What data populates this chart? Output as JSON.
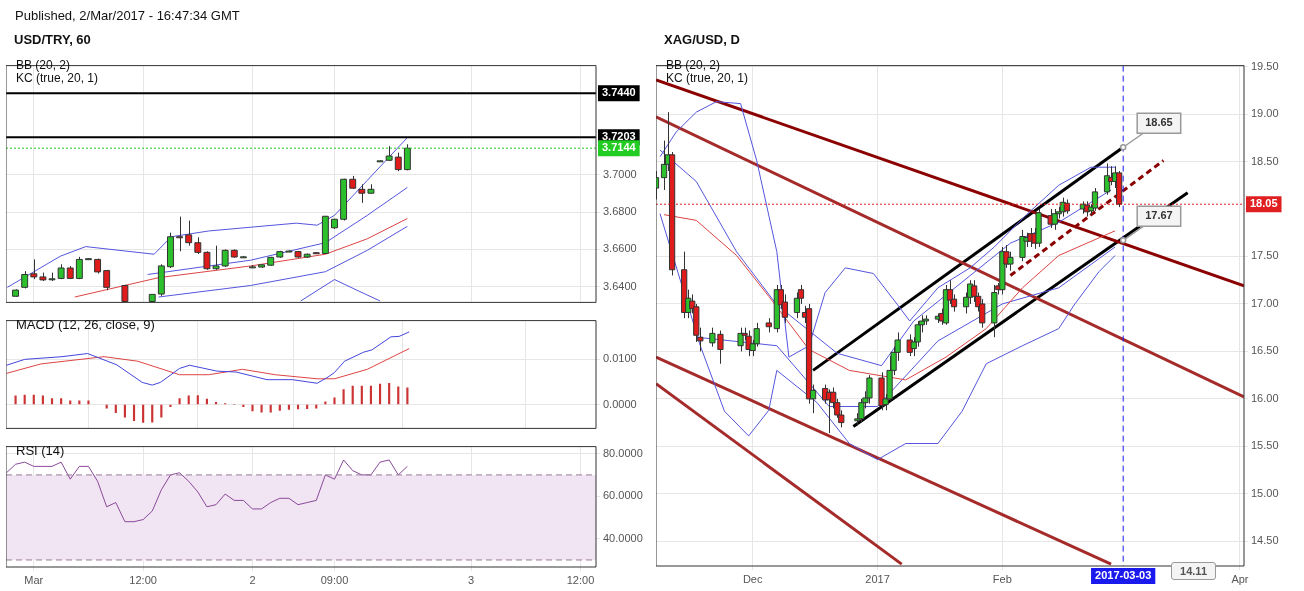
{
  "chart_data": [
    {
      "type": "candlestick",
      "title": "USD/TRY, 60",
      "subtitle": "Published, 2/Mar/2017 - 16:47:34 GMT",
      "annotations": [
        "BB (20, 2)",
        "KC (true, 20, 1)"
      ],
      "tick_labels": "y",
      "grid": true,
      "xlim": [
        "2017-02-28T20:57",
        "2017-03-03T13:42"
      ],
      "xticks": [
        {
          "value": "2017-03-01T00:00",
          "label": null
        },
        {
          "value": "2017-03-01T12:00",
          "label": null
        },
        {
          "value": "2017-03-02T00:00",
          "label": null
        },
        {
          "value": "2017-03-02T09:00",
          "label": null
        },
        {
          "value": "2017-03-03T00:00",
          "label": null
        },
        {
          "value": "2017-03-03T12:00",
          "label": null
        }
      ],
      "ylim": [
        3.6315,
        3.7588
      ],
      "yticks": [
        {
          "value": 3.64,
          "label": "3.6400"
        },
        {
          "value": 3.66,
          "label": "3.6600"
        },
        {
          "value": 3.68,
          "label": "3.6800"
        },
        {
          "value": 3.7,
          "label": "3.7000"
        }
      ],
      "x": [
        "2017-02-28T22:00",
        "2017-02-28T23:00",
        "2017-03-01T00:00",
        "2017-03-01T01:00",
        "2017-03-01T02:00",
        "2017-03-01T03:00",
        "2017-03-01T04:00",
        "2017-03-01T05:00",
        "2017-03-01T06:00",
        "2017-03-01T07:00",
        "2017-03-01T08:00",
        "2017-03-01T10:00",
        "2017-03-01T13:00",
        "2017-03-01T14:00",
        "2017-03-01T15:00",
        "2017-03-01T16:00",
        "2017-03-01T17:00",
        "2017-03-01T18:00",
        "2017-03-01T19:00",
        "2017-03-01T20:00",
        "2017-03-01T21:00",
        "2017-03-01T22:00",
        "2017-03-01T23:00",
        "2017-03-02T00:00",
        "2017-03-02T01:00",
        "2017-03-02T02:00",
        "2017-03-02T03:00",
        "2017-03-02T04:00",
        "2017-03-02T05:00",
        "2017-03-02T06:00",
        "2017-03-02T07:00",
        "2017-03-02T08:00",
        "2017-03-02T09:00",
        "2017-03-02T10:00",
        "2017-03-02T11:00",
        "2017-03-02T12:00",
        "2017-03-02T13:00",
        "2017-03-02T14:00",
        "2017-03-02T15:00",
        "2017-03-02T16:00",
        "2017-03-02T17:00"
      ],
      "ohlc": [
        [
          3.6348,
          3.6385,
          3.6345,
          3.6381
        ],
        [
          3.6396,
          3.6483,
          3.639,
          3.6465
        ],
        [
          3.6469,
          3.6546,
          3.644,
          3.6452
        ],
        [
          3.6452,
          3.6475,
          3.643,
          3.6436
        ],
        [
          3.644,
          3.6475,
          3.643,
          3.6442
        ],
        [
          3.6444,
          3.652,
          3.644,
          3.65
        ],
        [
          3.65,
          3.651,
          3.644,
          3.6444
        ],
        [
          3.6444,
          3.656,
          3.644,
          3.6546
        ],
        [
          3.6548,
          3.6552,
          3.6545,
          3.655
        ],
        [
          3.6546,
          3.655,
          3.647,
          3.6479
        ],
        [
          3.6486,
          3.649,
          3.638,
          3.6396
        ],
        [
          3.6406,
          3.641,
          3.6316,
          3.632
        ],
        [
          3.632,
          3.6358,
          3.632,
          3.6358
        ],
        [
          3.636,
          3.652,
          3.635,
          3.6511
        ],
        [
          3.6507,
          3.669,
          3.65,
          3.6668
        ],
        [
          3.6668,
          3.6776,
          3.659,
          3.6666
        ],
        [
          3.6678,
          3.6755,
          3.662,
          3.6636
        ],
        [
          3.6636,
          3.6665,
          3.6575,
          3.6584
        ],
        [
          3.6584,
          3.659,
          3.649,
          3.6496
        ],
        [
          3.6496,
          3.662,
          3.649,
          3.6511
        ],
        [
          3.6511,
          3.66,
          3.6505,
          3.6595
        ],
        [
          3.6595,
          3.66,
          3.6555,
          3.6559
        ],
        [
          3.6559,
          3.6565,
          3.6555,
          3.656
        ],
        [
          3.6505,
          3.6515,
          3.65,
          3.6506
        ],
        [
          3.6505,
          3.652,
          3.65,
          3.6517
        ],
        [
          3.6515,
          3.656,
          3.6512,
          3.6557
        ],
        [
          3.6559,
          3.6592,
          3.6555,
          3.6588
        ],
        [
          3.659,
          3.6594,
          3.6587,
          3.6591
        ],
        [
          3.6588,
          3.6592,
          3.6555,
          3.6559
        ],
        [
          3.6559,
          3.6578,
          3.6555,
          3.6574
        ],
        [
          3.6582,
          3.6585,
          3.6575,
          3.6578
        ],
        [
          3.6578,
          3.678,
          3.6575,
          3.6778
        ],
        [
          3.6716,
          3.6765,
          3.671,
          3.6762
        ],
        [
          3.6762,
          3.698,
          3.6755,
          3.6977
        ],
        [
          3.6977,
          3.6995,
          3.6925,
          3.6929
        ],
        [
          3.6923,
          3.695,
          3.685,
          3.6902
        ],
        [
          3.6902,
          3.695,
          3.69,
          3.6923
        ],
        [
          3.7075,
          3.7078,
          3.7072,
          3.7076
        ],
        [
          3.7079,
          3.7155,
          3.7075,
          3.7102
        ],
        [
          3.7096,
          3.712,
          3.702,
          3.7029
        ],
        [
          3.7029,
          3.7165,
          3.7025,
          3.7144
        ]
      ],
      "colors": [
        "#2dc02d",
        "#2dc02d",
        "#e01b1b",
        "#e01b1b",
        "#2dc02d",
        "#2dc02d",
        "#e01b1b",
        "#2dc02d",
        "#2dc02d",
        "#e01b1b",
        "#e01b1b",
        "#e01b1b",
        "#2dc02d",
        "#2dc02d",
        "#2dc02d",
        "#e01b1b",
        "#e01b1b",
        "#e01b1b",
        "#e01b1b",
        "#2dc02d",
        "#2dc02d",
        "#e01b1b",
        "#2dc02d",
        "#2dc02d",
        "#2dc02d",
        "#2dc02d",
        "#2dc02d",
        "#2dc02d",
        "#e01b1b",
        "#2dc02d",
        "#e01b1b",
        "#2dc02d",
        "#2dc02d",
        "#2dc02d",
        "#e01b1b",
        "#e01b1b",
        "#2dc02d",
        "#2dc02d",
        "#2dc02d",
        "#e01b1b",
        "#2dc02d"
      ],
      "series": [
        {
          "type": "line",
          "color": "#5555dd",
          "x": [
            "2017-02-28T21:06",
            "2017-03-01T02:54",
            "2017-03-01T05:42",
            "2017-03-01T13:12",
            "2017-03-01T15:06",
            "2017-03-01T19:12",
            "2017-03-02T04:48",
            "2017-03-02T07:06",
            "2017-03-02T09:00",
            "2017-03-02T12:36",
            "2017-03-02T17:00"
          ],
          "values": [
            3.6396,
            3.6563,
            3.6615,
            3.6574,
            3.6668,
            3.6699,
            3.6741,
            3.673,
            3.6783,
            3.6971,
            3.7201
          ]
        },
        {
          "type": "line",
          "color": "#5555dd",
          "x": [
            "2017-03-01T12:30",
            "2017-03-01T23:48",
            "2017-03-02T08:00",
            "2017-03-02T12:36",
            "2017-03-02T17:00"
          ],
          "values": [
            3.6465,
            3.6542,
            3.6636,
            3.6783,
            3.6933
          ]
        },
        {
          "type": "line",
          "color": "#dd4444",
          "x": [
            "2017-03-01T04:30",
            "2017-03-01T13:42",
            "2017-03-01T23:48",
            "2017-03-02T08:00",
            "2017-03-02T12:36",
            "2017-03-02T17:00"
          ],
          "values": [
            3.6344,
            3.6448,
            3.6511,
            3.6574,
            3.6657,
            3.6766
          ]
        },
        {
          "type": "line",
          "color": "#5555dd",
          "x": [
            "2017-03-01T13:42",
            "2017-03-01T23:48",
            "2017-03-02T08:00",
            "2017-03-02T12:36",
            "2017-03-02T17:00"
          ],
          "values": [
            3.6344,
            3.6406,
            3.648,
            3.6595,
            3.6724
          ]
        },
        {
          "type": "line",
          "color": "#5555dd",
          "x": [
            "2017-03-02T05:18",
            "2017-03-02T09:00",
            "2017-03-02T11:42",
            "2017-03-02T14:00"
          ],
          "values": [
            3.6323,
            3.6438,
            3.6375,
            3.6323
          ]
        }
      ],
      "ref_lines": [
        {
          "axis": "y",
          "value": 3.744,
          "label": "3.7440",
          "color": "#000000"
        },
        {
          "axis": "y",
          "value": 3.7203,
          "label": "3.7203",
          "color": "#000000"
        },
        {
          "axis": "y",
          "value": 3.7144,
          "label": "3.7144",
          "color": "#22cc22",
          "line_style": "dotted"
        }
      ]
    },
    {
      "type": "line",
      "title": "MACD (12, 26, close, 9)",
      "tick_labels": "y",
      "grid": true,
      "xlim": [
        "2017-02-28T20:57",
        "2017-03-03T13:42"
      ],
      "xticks": [
        {
          "value": "2017-03-01T00:00",
          "label": null
        },
        {
          "value": "2017-03-01T12:00",
          "label": null
        },
        {
          "value": "2017-03-02T00:00",
          "label": null
        },
        {
          "value": "2017-03-02T09:00",
          "label": null
        },
        {
          "value": "2017-03-03T00:00",
          "label": null
        },
        {
          "value": "2017-03-03T12:00",
          "label": null
        }
      ],
      "ylim": [
        -0.0053,
        0.0186
      ],
      "yticks": [
        {
          "value": 0,
          "label": "0.0000"
        },
        {
          "value": 0.01,
          "label": "0.0100"
        }
      ],
      "series": [
        {
          "type": "bar",
          "color": "#cc3333",
          "x": [
            "2017-02-28T22:00",
            "2017-02-28T23:00",
            "2017-03-01T00:00",
            "2017-03-01T01:00",
            "2017-03-01T02:00",
            "2017-03-01T03:00",
            "2017-03-01T04:00",
            "2017-03-01T05:00",
            "2017-03-01T06:00",
            "2017-03-01T07:00",
            "2017-03-01T08:00",
            "2017-03-01T09:00",
            "2017-03-01T10:00",
            "2017-03-01T11:00",
            "2017-03-01T12:00",
            "2017-03-01T13:00",
            "2017-03-01T14:00",
            "2017-03-01T15:00",
            "2017-03-01T16:00",
            "2017-03-01T17:00",
            "2017-03-01T18:00",
            "2017-03-01T19:00",
            "2017-03-01T20:00",
            "2017-03-01T21:00",
            "2017-03-01T22:00",
            "2017-03-01T23:00",
            "2017-03-02T00:00",
            "2017-03-02T01:00",
            "2017-03-02T02:00",
            "2017-03-02T03:00",
            "2017-03-02T04:00",
            "2017-03-02T05:00",
            "2017-03-02T06:00",
            "2017-03-02T07:00",
            "2017-03-02T08:00",
            "2017-03-02T09:00",
            "2017-03-02T10:00",
            "2017-03-02T11:00",
            "2017-03-02T12:00",
            "2017-03-02T13:00",
            "2017-03-02T14:00",
            "2017-03-02T15:00",
            "2017-03-02T16:00",
            "2017-03-02T17:00"
          ],
          "values": [
            0.0019,
            0.0021,
            0.0021,
            0.0019,
            0.0013,
            0.0013,
            0.0008,
            0.0008,
            0.0008,
            null,
            -0.0008,
            -0.0018,
            -0.0028,
            -0.0036,
            -0.004,
            -0.0039,
            -0.0028,
            -0.0005,
            0.0013,
            0.0019,
            0.002,
            0.0012,
            0.0005,
            0.0002,
            0,
            -0.0005,
            -0.0014,
            -0.0017,
            -0.0017,
            -0.0013,
            -0.0011,
            -0.001,
            -0.0009,
            -0.0008,
            0.0006,
            0.0015,
            0.0033,
            0.0041,
            0.0041,
            0.0041,
            0.0045,
            0.0047,
            0.0039,
            0.0037
          ]
        },
        {
          "type": "line",
          "color": "#4444dd",
          "x": [
            "2017-02-28T21:00",
            "2017-02-28T23:00",
            "2017-03-01T03:06",
            "2017-03-01T05:54",
            "2017-03-01T09:06",
            "2017-03-01T11:54",
            "2017-03-01T13:00",
            "2017-03-01T13:54",
            "2017-03-01T16:00",
            "2017-03-01T17:06",
            "2017-03-01T20:06",
            "2017-03-01T22:12",
            "2017-03-02T01:36",
            "2017-03-02T04:24",
            "2017-03-02T07:06",
            "2017-03-02T08:18",
            "2017-03-02T09:00",
            "2017-03-02T10:06",
            "2017-03-02T12:12",
            "2017-03-02T13:06",
            "2017-03-02T15:12",
            "2017-03-02T16:06",
            "2017-03-02T17:12"
          ],
          "values": [
            0.0087,
            0.01,
            0.0106,
            0.0113,
            0.0088,
            0.0049,
            0.0043,
            0.0049,
            0.008,
            0.0087,
            0.0074,
            0.0072,
            0.0055,
            0.0055,
            0.0047,
            0.0061,
            0.0071,
            0.0096,
            0.0116,
            0.0121,
            0.015,
            0.0151,
            0.0161
          ]
        },
        {
          "type": "line",
          "color": "#dd4444",
          "x": [
            "2017-02-28T21:00",
            "2017-03-01T00:48",
            "2017-03-01T07:42",
            "2017-03-01T11:24",
            "2017-03-01T16:00",
            "2017-03-01T19:12",
            "2017-03-01T22:54",
            "2017-03-02T02:30",
            "2017-03-02T07:06",
            "2017-03-02T09:00",
            "2017-03-02T12:36",
            "2017-03-02T17:12"
          ],
          "values": [
            0.0069,
            0.009,
            0.0106,
            0.0096,
            0.0066,
            0.0066,
            0.0078,
            0.0066,
            0.0057,
            0.0057,
            0.0078,
            0.0124
          ]
        }
      ]
    },
    {
      "type": "line",
      "title": "RSI (14)",
      "grid": true,
      "xlim": [
        "2017-02-28T20:57",
        "2017-03-03T13:42"
      ],
      "xticks": [
        {
          "value": "2017-03-01T00:00",
          "label": "Mar"
        },
        {
          "value": "2017-03-01T12:00",
          "label": "12:00"
        },
        {
          "value": "2017-03-02T00:00",
          "label": "2"
        },
        {
          "value": "2017-03-02T09:00",
          "label": "09:00"
        },
        {
          "value": "2017-03-03T00:00",
          "label": "3"
        },
        {
          "value": "2017-03-03T12:00",
          "label": "12:00"
        }
      ],
      "ylim": [
        26.7,
        83.3
      ],
      "yticks": [
        {
          "value": 40,
          "label": "40.0000"
        },
        {
          "value": 60,
          "label": "60.0000"
        },
        {
          "value": 80,
          "label": "80.0000"
        }
      ],
      "bands": [
        {
          "axis": "y",
          "from": 30,
          "to": 70,
          "color": "#f1e4f3"
        }
      ],
      "ref_lines": [
        {
          "axis": "y",
          "value": 70,
          "color": "#9a7a9a",
          "line_style": "dashed"
        },
        {
          "axis": "y",
          "value": 30,
          "color": "#9a7a9a",
          "line_style": "dashed"
        }
      ],
      "series": [
        {
          "type": "line",
          "color": "#8a4a9a",
          "x": [
            "2017-02-28T21:00",
            "2017-02-28T22:00",
            "2017-02-28T23:00",
            "2017-03-01T00:00",
            "2017-03-01T01:00",
            "2017-03-01T02:00",
            "2017-03-01T03:00",
            "2017-03-01T04:00",
            "2017-03-01T05:00",
            "2017-03-01T06:00",
            "2017-03-01T07:00",
            "2017-03-01T08:00",
            "2017-03-01T09:00",
            "2017-03-01T10:00",
            "2017-03-01T11:00",
            "2017-03-01T12:00",
            "2017-03-01T13:00",
            "2017-03-01T14:00",
            "2017-03-01T15:00",
            "2017-03-01T16:00",
            "2017-03-01T17:00",
            "2017-03-01T18:00",
            "2017-03-01T19:00",
            "2017-03-01T20:00",
            "2017-03-01T21:00",
            "2017-03-01T22:00",
            "2017-03-01T23:00",
            "2017-03-02T00:00",
            "2017-03-02T01:00",
            "2017-03-02T02:00",
            "2017-03-02T03:00",
            "2017-03-02T04:00",
            "2017-03-02T05:00",
            "2017-03-02T06:00",
            "2017-03-02T07:00",
            "2017-03-02T08:00",
            "2017-03-02T09:00",
            "2017-03-02T10:00",
            "2017-03-02T11:00",
            "2017-03-02T12:00",
            "2017-03-02T13:00",
            "2017-03-02T14:00",
            "2017-03-02T15:00",
            "2017-03-02T16:00",
            "2017-03-02T17:00"
          ],
          "values": [
            71,
            75,
            76,
            74,
            74,
            74,
            76,
            68,
            74,
            74,
            67,
            55,
            57,
            48,
            48,
            49,
            53,
            63,
            70,
            71,
            67,
            62,
            55,
            56,
            61,
            58,
            58,
            54,
            54,
            57,
            59,
            59,
            56,
            57,
            58,
            70,
            68,
            77,
            72,
            70,
            70,
            76,
            77,
            70,
            74
          ]
        }
      ]
    },
    {
      "type": "candlestick",
      "title": "XAG/USD, D",
      "grid": true,
      "annotations": [
        "BB (20, 2)",
        "KC (true, 20, 1)",
        {
          "text": "18.65",
          "x": "2017-03-03",
          "y": 18.65
        },
        {
          "text": "17.67",
          "x": "2017-03-03",
          "y": 17.67
        },
        "14.11"
      ],
      "xlim": [
        "2016-11-07",
        "2017-04-02"
      ],
      "xticks": [
        {
          "value": "2016-12-01",
          "label": "Dec"
        },
        {
          "value": "2017-01-01",
          "label": "2017"
        },
        {
          "value": "2017-02-01",
          "label": "Feb"
        },
        {
          "value": "2017-04-01",
          "label": "Apr"
        }
      ],
      "ylim": [
        14.24,
        19.51
      ],
      "yticks": [
        {
          "value": 14.5,
          "label": "14.50"
        },
        {
          "value": 15,
          "label": "15.00"
        },
        {
          "value": 15.5,
          "label": "15.50"
        },
        {
          "value": 16,
          "label": "16.00"
        },
        {
          "value": 16.5,
          "label": "16.50"
        },
        {
          "value": 17,
          "label": "17.00"
        },
        {
          "value": 17.5,
          "label": "17.50"
        },
        {
          "value": 18.5,
          "label": "18.50"
        },
        {
          "value": 19,
          "label": "19.00"
        },
        {
          "value": 19.5,
          "label": "19.50"
        }
      ],
      "x": [
        "2016-11-07",
        "2016-11-09",
        "2016-11-10",
        "2016-11-11",
        "2016-11-14",
        "2016-11-15",
        "2016-11-16",
        "2016-11-17",
        "2016-11-18",
        "2016-11-21",
        "2016-11-23",
        "2016-11-28",
        "2016-11-29",
        "2016-11-30",
        "2016-12-01",
        "2016-12-02",
        "2016-12-05",
        "2016-12-07",
        "2016-12-08",
        "2016-12-09",
        "2016-12-12",
        "2016-12-13",
        "2016-12-14",
        "2016-12-15",
        "2016-12-16",
        "2016-12-19",
        "2016-12-20",
        "2016-12-21",
        "2016-12-22",
        "2016-12-23",
        "2016-12-27",
        "2016-12-28",
        "2016-12-29",
        "2016-12-30",
        "2017-01-02",
        "2017-01-03",
        "2017-01-04",
        "2017-01-05",
        "2017-01-06",
        "2017-01-09",
        "2017-01-10",
        "2017-01-11",
        "2017-01-12",
        "2017-01-13",
        "2017-01-16",
        "2017-01-17",
        "2017-01-18",
        "2017-01-19",
        "2017-01-20",
        "2017-01-23",
        "2017-01-24",
        "2017-01-25",
        "2017-01-26",
        "2017-01-27",
        "2017-01-30",
        "2017-01-31",
        "2017-02-01",
        "2017-02-02",
        "2017-02-03",
        "2017-02-06",
        "2017-02-07",
        "2017-02-08",
        "2017-02-09",
        "2017-02-10",
        "2017-02-13",
        "2017-02-14",
        "2017-02-15",
        "2017-02-16",
        "2017-02-17",
        "2017-02-21",
        "2017-02-22",
        "2017-02-23",
        "2017-02-24",
        "2017-02-27",
        "2017-02-28",
        "2017-03-01",
        "2017-03-02"
      ],
      "ohlc": [
        [
          18.22,
          18.4,
          18.1,
          18.33
        ],
        [
          18.33,
          18.72,
          18.2,
          18.47
        ],
        [
          18.47,
          19.02,
          18.4,
          18.57
        ],
        [
          18.57,
          18.6,
          17.3,
          17.36
        ],
        [
          17.36,
          17.55,
          16.85,
          16.91
        ],
        [
          16.91,
          17.15,
          16.85,
          17.06
        ],
        [
          17.03,
          17.1,
          16.9,
          16.95
        ],
        [
          16.97,
          17,
          16.6,
          16.67
        ],
        [
          16.65,
          16.75,
          16.5,
          16.61
        ],
        [
          16.59,
          16.75,
          16.55,
          16.69
        ],
        [
          16.68,
          16.72,
          16.37,
          16.52
        ],
        [
          16.56,
          16.75,
          16.5,
          16.69
        ],
        [
          16.69,
          16.75,
          16.62,
          16.67
        ],
        [
          16.66,
          16.72,
          16.45,
          16.52
        ],
        [
          16.51,
          16.62,
          16.45,
          16.58
        ],
        [
          16.58,
          16.8,
          16.55,
          16.74
        ],
        [
          16.8,
          16.85,
          16.7,
          16.76
        ],
        [
          16.74,
          17.2,
          16.7,
          17.15
        ],
        [
          17.15,
          17.2,
          16.95,
          16.99
        ],
        [
          17.02,
          17.1,
          16.8,
          16.86
        ],
        [
          16.91,
          17.12,
          16.85,
          17.06
        ],
        [
          17.15,
          17.2,
          17,
          17.06
        ],
        [
          16.91,
          16.98,
          16.8,
          16.86
        ],
        [
          16.95,
          17,
          15.95,
          16
        ],
        [
          16,
          16.15,
          15.85,
          16.09
        ],
        [
          16.11,
          16.15,
          15.95,
          15.99
        ],
        [
          16.07,
          16.1,
          15.64,
          15.99
        ],
        [
          16.07,
          16.12,
          15.9,
          15.96
        ],
        [
          15.96,
          16,
          15.8,
          15.83
        ],
        [
          15.83,
          15.88,
          15.7,
          15.75
        ],
        [
          15.77,
          15.85,
          15.72,
          15.79
        ],
        [
          15.79,
          16,
          15.75,
          15.96
        ],
        [
          15.96,
          16.08,
          15.9,
          16.01
        ],
        [
          16.01,
          16.25,
          15.95,
          16.22
        ],
        [
          16.22,
          16.28,
          15.88,
          15.93
        ],
        [
          15.94,
          16.05,
          15.88,
          16
        ],
        [
          16,
          16.45,
          15.98,
          16.3
        ],
        [
          16.3,
          16.55,
          16.25,
          16.49
        ],
        [
          16.49,
          16.7,
          16.4,
          16.62
        ],
        [
          16.62,
          16.68,
          16.45,
          16.49
        ],
        [
          16.53,
          16.65,
          16.45,
          16.6
        ],
        [
          16.6,
          16.82,
          16.55,
          16.78
        ],
        [
          16.78,
          16.88,
          16.7,
          16.82
        ],
        [
          16.82,
          16.88,
          16.78,
          16.84
        ],
        [
          16.84,
          16.9,
          16.8,
          16.87
        ],
        [
          16.9,
          16.95,
          16.78,
          16.82
        ],
        [
          16.8,
          17.2,
          16.78,
          17.15
        ],
        [
          17.15,
          17.25,
          17,
          17.04
        ],
        [
          17.05,
          17.1,
          16.92,
          16.97
        ],
        [
          16.97,
          17.12,
          16.9,
          17.07
        ],
        [
          17.07,
          17.25,
          17,
          17.21
        ],
        [
          17.19,
          17.25,
          17.02,
          17.08
        ],
        [
          17.08,
          17.12,
          16.92,
          16.97
        ],
        [
          17,
          17.05,
          16.75,
          16.8
        ],
        [
          16.8,
          17.2,
          16.65,
          17.12
        ],
        [
          17.19,
          17.22,
          17.1,
          17.15
        ],
        [
          17.15,
          17.6,
          17.1,
          17.55
        ],
        [
          17.55,
          17.62,
          17.38,
          17.42
        ],
        [
          17.42,
          17.55,
          17.35,
          17.49
        ],
        [
          17.49,
          17.78,
          17.45,
          17.71
        ],
        [
          17.66,
          17.75,
          17.6,
          17.7
        ],
        [
          17.74,
          17.8,
          17.6,
          17.66
        ],
        [
          17.74,
          17.8,
          17.58,
          17.64
        ],
        [
          17.64,
          18,
          17.6,
          17.96
        ],
        [
          17.93,
          18,
          17.8,
          17.84
        ],
        [
          17.84,
          18,
          17.78,
          17.95
        ],
        [
          17.95,
          18.02,
          17.9,
          17.97
        ],
        [
          17.97,
          18.12,
          17.92,
          18.07
        ],
        [
          18.06,
          18.1,
          17.95,
          17.98
        ],
        [
          18,
          18.08,
          17.95,
          18.05
        ],
        [
          18.04,
          18.08,
          17.92,
          17.97
        ],
        [
          17.98,
          18.05,
          17.94,
          18.02
        ],
        [
          18.01,
          18.22,
          17.98,
          18.18
        ],
        [
          18.18,
          18.48,
          18.15,
          18.35
        ],
        [
          18.33,
          18.45,
          18.25,
          18.29
        ],
        [
          18.29,
          18.45,
          18.22,
          18.38
        ],
        [
          18.38,
          18.4,
          18.02,
          18.05
        ]
      ],
      "colors": [
        "#2dc02d",
        "#2dc02d",
        "#2dc02d",
        "#e01b1b",
        "#e01b1b",
        "#2dc02d",
        "#e01b1b",
        "#e01b1b",
        "#e01b1b",
        "#2dc02d",
        "#e01b1b",
        "#2dc02d",
        "#e01b1b",
        "#e01b1b",
        "#2dc02d",
        "#2dc02d",
        "#e01b1b",
        "#2dc02d",
        "#e01b1b",
        "#e01b1b",
        "#2dc02d",
        "#e01b1b",
        "#e01b1b",
        "#e01b1b",
        "#2dc02d",
        "#e01b1b",
        "#e01b1b",
        "#e01b1b",
        "#e01b1b",
        "#e01b1b",
        "#2dc02d",
        "#2dc02d",
        "#2dc02d",
        "#2dc02d",
        "#e01b1b",
        "#2dc02d",
        "#2dc02d",
        "#2dc02d",
        "#2dc02d",
        "#e01b1b",
        "#2dc02d",
        "#2dc02d",
        "#2dc02d",
        "#2dc02d",
        "#2dc02d",
        "#e01b1b",
        "#2dc02d",
        "#e01b1b",
        "#e01b1b",
        "#2dc02d",
        "#2dc02d",
        "#e01b1b",
        "#e01b1b",
        "#e01b1b",
        "#2dc02d",
        "#e01b1b",
        "#2dc02d",
        "#e01b1b",
        "#2dc02d",
        "#2dc02d",
        "#2dc02d",
        "#e01b1b",
        "#e01b1b",
        "#2dc02d",
        "#e01b1b",
        "#2dc02d",
        "#2dc02d",
        "#2dc02d",
        "#e01b1b",
        "#2dc02d",
        "#e01b1b",
        "#2dc02d",
        "#2dc02d",
        "#2dc02d",
        "#e01b1b",
        "#2dc02d",
        "#e01b1b"
      ],
      "series": [
        {
          "type": "line",
          "color": "#5555dd",
          "x": [
            "2016-11-08",
            "2016-11-12",
            "2016-11-17",
            "2016-11-22",
            "2016-11-28",
            "2016-12-02",
            "2016-12-07",
            "2016-12-10",
            "2016-12-15",
            "2016-12-19",
            "2016-12-24",
            "2016-12-31",
            "2017-01-06",
            "2017-01-09",
            "2017-01-16",
            "2017-01-24",
            "2017-01-30",
            "2017-02-07",
            "2017-02-15",
            "2017-02-23",
            "2017-03-01"
          ],
          "values": [
            18.55,
            18.81,
            19.02,
            19.13,
            19.11,
            18.51,
            17.55,
            16.44,
            16.56,
            17.12,
            17.38,
            17.32,
            16.99,
            16.82,
            17.17,
            17.38,
            17.6,
            17.94,
            18.25,
            18.44,
            18.44
          ]
        },
        {
          "type": "line",
          "color": "#5555dd",
          "x": [
            "2016-11-08",
            "2016-11-17",
            "2016-11-27",
            "2016-12-07",
            "2016-12-22",
            "2017-01-02",
            "2017-01-10",
            "2017-02-03",
            "2017-02-15",
            "2017-02-28"
          ],
          "values": [
            18.62,
            18.29,
            17.55,
            16.99,
            16.48,
            16.35,
            16.82,
            17.64,
            17.86,
            18.2
          ]
        },
        {
          "type": "line",
          "color": "#dd4444",
          "x": [
            "2016-11-09",
            "2016-11-17",
            "2016-11-27",
            "2016-12-05",
            "2016-12-15",
            "2016-12-25",
            "2017-01-08",
            "2017-01-18",
            "2017-01-28",
            "2017-02-06",
            "2017-02-15",
            "2017-03-01"
          ],
          "values": [
            17.94,
            17.88,
            17.51,
            17.08,
            16.52,
            16.3,
            16.2,
            16.44,
            16.74,
            17.17,
            17.51,
            17.77
          ]
        },
        {
          "type": "line",
          "color": "#5555dd",
          "x": [
            "2016-11-17",
            "2016-12-07",
            "2016-12-20",
            "2017-01-01",
            "2017-01-16",
            "2017-02-01",
            "2017-02-15",
            "2017-03-01"
          ],
          "values": [
            16.65,
            16.56,
            15.92,
            15.92,
            16.61,
            17,
            17.17,
            17.6
          ]
        },
        {
          "type": "line",
          "color": "#5555dd",
          "x": [
            "2016-11-08",
            "2016-11-18",
            "2016-11-24",
            "2016-11-30",
            "2016-12-05",
            "2016-12-07",
            "2016-12-17",
            "2016-12-25",
            "2017-01-01",
            "2017-01-08",
            "2017-01-16",
            "2017-01-22",
            "2017-01-28",
            "2017-02-06",
            "2017-02-15",
            "2017-02-19",
            "2017-02-25",
            "2017-03-01"
          ],
          "values": [
            17.95,
            16.56,
            15.87,
            15.61,
            15.88,
            16.3,
            15.96,
            15.53,
            15.36,
            15.53,
            15.53,
            15.87,
            16.37,
            16.56,
            16.74,
            17,
            17.34,
            17.51
          ]
        },
        {
          "type": "line",
          "color": "#a52a2a",
          "x": [
            "2016-11-07",
            "2017-04-02"
          ],
          "values": [
            18.97,
            16.02
          ]
        },
        {
          "type": "line",
          "color": "#a52a2a",
          "x": [
            "2016-11-07",
            "2017-02-28"
          ],
          "values": [
            16.44,
            14.26
          ]
        },
        {
          "type": "line",
          "color": "#a52a2a",
          "x": [
            "2016-11-07",
            "2017-01-07"
          ],
          "values": [
            16.16,
            14.26
          ]
        },
        {
          "type": "line",
          "color": "#8b0000",
          "x": [
            "2016-11-07",
            "2017-04-02"
          ],
          "values": [
            19.36,
            17.19
          ]
        },
        {
          "type": "line",
          "color": "#000000",
          "x": [
            "2016-12-16",
            "2017-03-03"
          ],
          "values": [
            16.3,
            18.65
          ]
        },
        {
          "type": "line",
          "color": "#000000",
          "x": [
            "2016-12-26",
            "2017-03-19"
          ],
          "values": [
            15.71,
            18.17
          ]
        },
        {
          "type": "line",
          "color": "#8b0000",
          "line_style": "dashed",
          "x": [
            "2017-02-03",
            "2017-03-13"
          ],
          "values": [
            17.3,
            18.51
          ]
        }
      ],
      "ref_lines": [
        {
          "axis": "y",
          "value": 18.05,
          "label": "18.05",
          "color": "#e02020",
          "line_style": "dotted"
        },
        {
          "axis": "x",
          "value": "2017-03-03",
          "label": "2017-03-03",
          "color": "#1a1aee",
          "line_style": "dashed"
        }
      ]
    }
  ]
}
